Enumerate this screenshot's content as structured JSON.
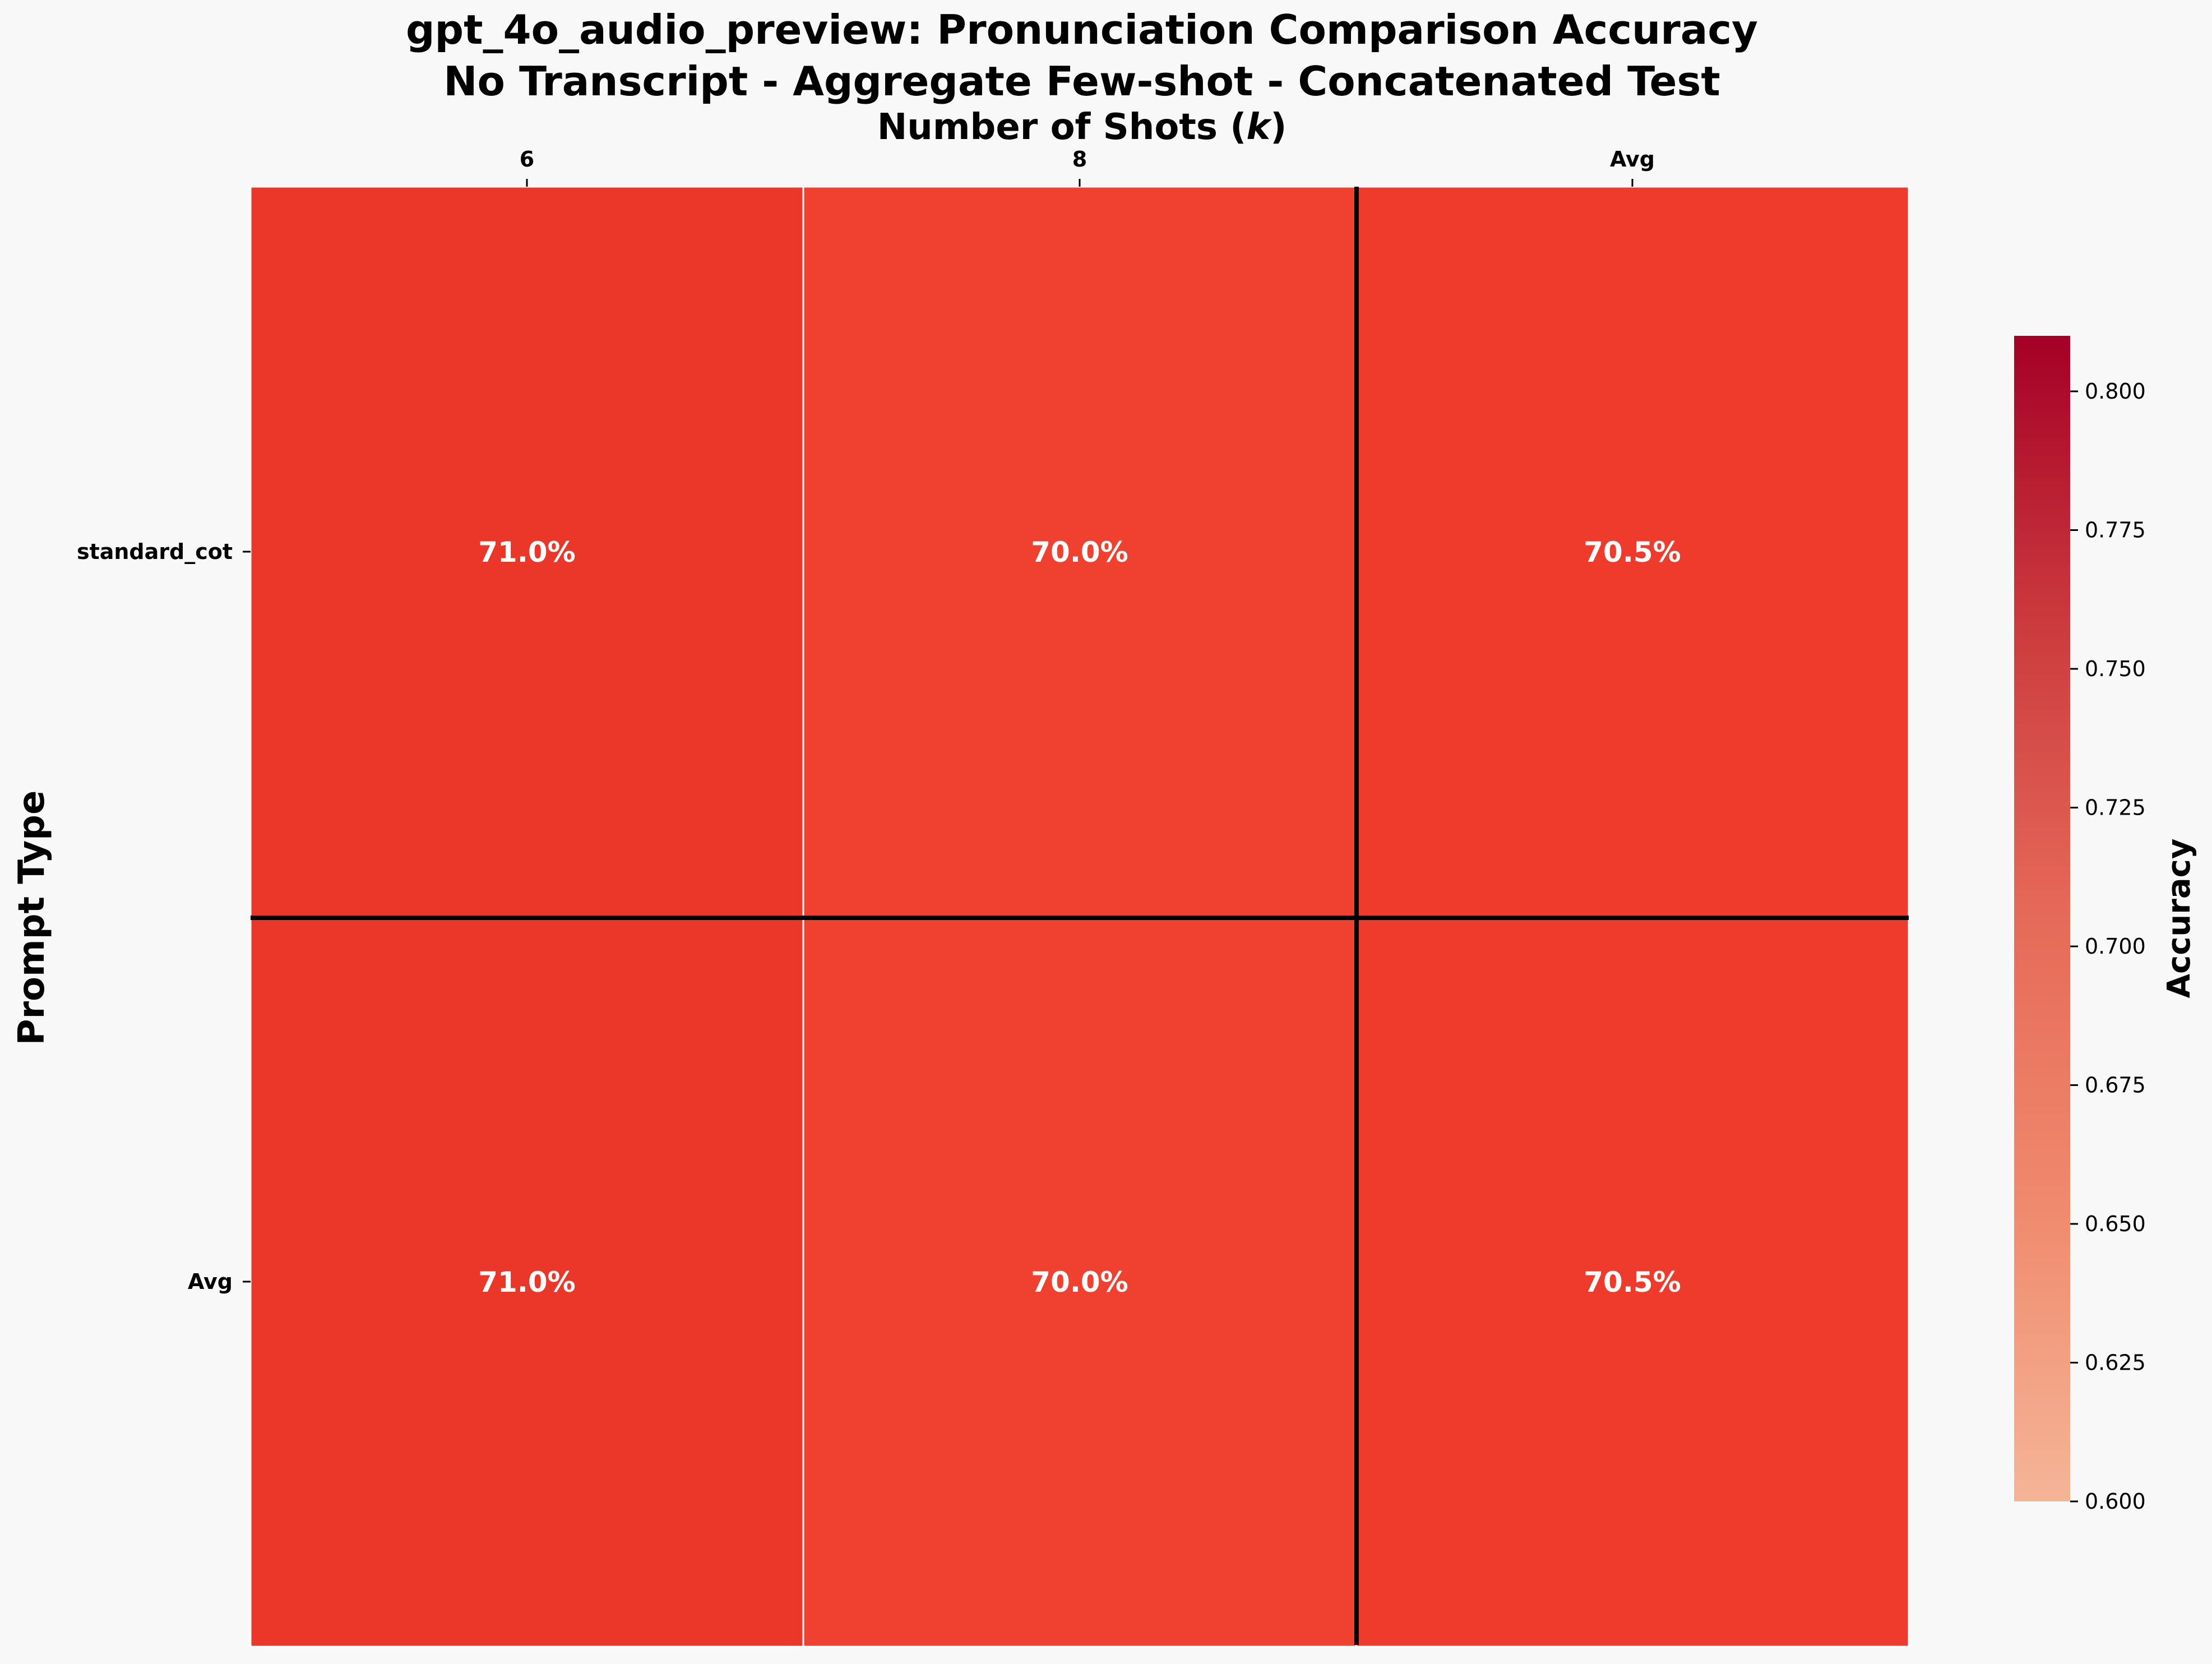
{
  "chart_data": {
    "type": "heatmap",
    "title_lines": [
      "gpt_4o_audio_preview: Pronunciation Comparison Accuracy",
      "No Transcript - Aggregate Few-shot - Concatenated Test"
    ],
    "xlabel": "Number of Shots (",
    "xlabel_var": "k",
    "xlabel_end": ")",
    "ylabel": "Prompt Type",
    "x_categories": [
      "6",
      "8",
      "Avg"
    ],
    "y_categories": [
      "standard_cot",
      "Avg"
    ],
    "values": [
      [
        0.71,
        0.7,
        0.705
      ],
      [
        0.71,
        0.7,
        0.705
      ]
    ],
    "cell_labels": [
      [
        "71.0%",
        "70.0%",
        "70.5%"
      ],
      [
        "71.0%",
        "70.0%",
        "70.5%"
      ]
    ],
    "colorbar": {
      "label": "Accuracy",
      "range": [
        0.6,
        0.81
      ],
      "ticks": [
        "0.600",
        "0.625",
        "0.650",
        "0.675",
        "0.700",
        "0.725",
        "0.750",
        "0.775",
        "0.800"
      ],
      "colormap": "Reds"
    },
    "separators": "Avg row and Avg column separated by thick black lines"
  }
}
